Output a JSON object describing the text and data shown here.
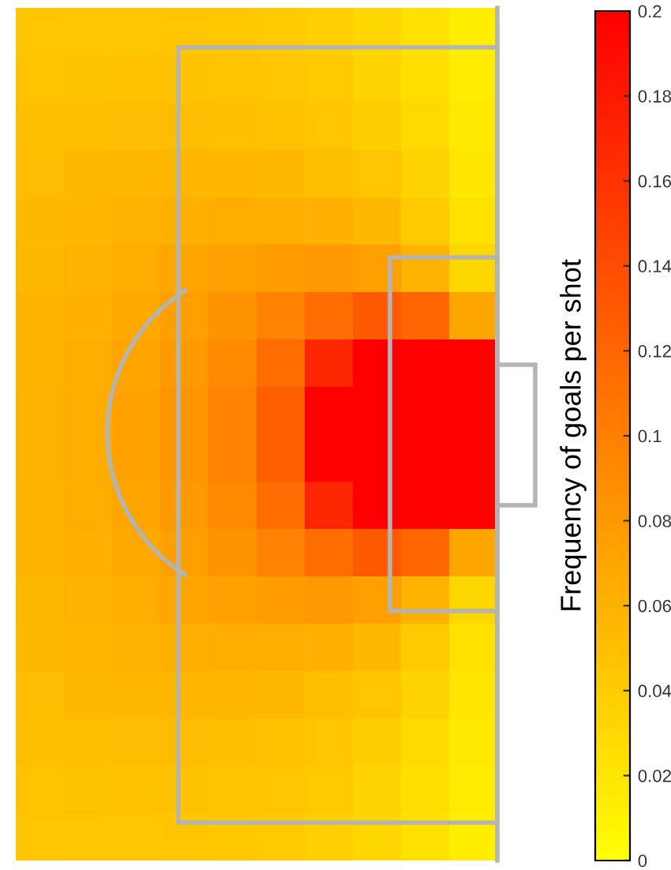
{
  "chart_data": {
    "type": "heatmap",
    "clabel": "Frequency of goals per shot",
    "categories": [
      null,
      null,
      null,
      null,
      null,
      null,
      null,
      null,
      null,
      null
    ],
    "y_categories": [
      null,
      null,
      null,
      null,
      null,
      null,
      null,
      null,
      null,
      null,
      null,
      null,
      null,
      null,
      null,
      null,
      null,
      null
    ],
    "cells": [
      [
        0.045,
        0.046,
        0.046,
        0.045,
        0.044,
        0.042,
        0.038,
        0.032,
        0.024,
        0.014
      ],
      [
        0.047,
        0.048,
        0.049,
        0.048,
        0.047,
        0.045,
        0.041,
        0.035,
        0.026,
        0.015
      ],
      [
        0.05,
        0.051,
        0.052,
        0.052,
        0.051,
        0.049,
        0.045,
        0.039,
        0.029,
        0.017
      ],
      [
        0.052,
        0.054,
        0.056,
        0.057,
        0.057,
        0.055,
        0.051,
        0.045,
        0.034,
        0.019
      ],
      [
        0.054,
        0.057,
        0.06,
        0.062,
        0.064,
        0.064,
        0.061,
        0.055,
        0.042,
        0.023
      ],
      [
        0.056,
        0.06,
        0.064,
        0.069,
        0.074,
        0.078,
        0.08,
        0.075,
        0.06,
        0.032
      ],
      [
        0.058,
        0.062,
        0.068,
        0.075,
        0.084,
        0.097,
        0.115,
        0.13,
        0.12,
        0.07
      ],
      [
        0.059,
        0.064,
        0.071,
        0.08,
        0.092,
        0.115,
        0.17,
        0.2,
        0.2,
        0.2
      ],
      [
        0.06,
        0.065,
        0.073,
        0.083,
        0.098,
        0.125,
        0.2,
        0.2,
        0.2,
        0.2
      ],
      [
        0.06,
        0.065,
        0.073,
        0.083,
        0.098,
        0.125,
        0.2,
        0.2,
        0.2,
        0.2
      ],
      [
        0.059,
        0.064,
        0.071,
        0.08,
        0.092,
        0.115,
        0.17,
        0.2,
        0.2,
        0.2
      ],
      [
        0.058,
        0.062,
        0.068,
        0.075,
        0.084,
        0.097,
        0.115,
        0.13,
        0.12,
        0.07
      ],
      [
        0.056,
        0.06,
        0.064,
        0.069,
        0.074,
        0.078,
        0.08,
        0.075,
        0.06,
        0.032
      ],
      [
        0.054,
        0.057,
        0.06,
        0.062,
        0.064,
        0.064,
        0.061,
        0.055,
        0.042,
        0.023
      ],
      [
        0.052,
        0.054,
        0.056,
        0.057,
        0.057,
        0.055,
        0.051,
        0.045,
        0.034,
        0.019
      ],
      [
        0.05,
        0.051,
        0.052,
        0.052,
        0.051,
        0.049,
        0.045,
        0.039,
        0.029,
        0.017
      ],
      [
        0.047,
        0.048,
        0.049,
        0.048,
        0.047,
        0.045,
        0.041,
        0.035,
        0.026,
        0.015
      ],
      [
        0.045,
        0.046,
        0.046,
        0.045,
        0.044,
        0.042,
        0.038,
        0.032,
        0.024,
        0.014
      ]
    ],
    "clim": [
      0,
      0.2
    ],
    "cticks": [
      0,
      0.02,
      0.04,
      0.06,
      0.08,
      0.1,
      0.12,
      0.14,
      0.16,
      0.18,
      0.2
    ]
  }
}
